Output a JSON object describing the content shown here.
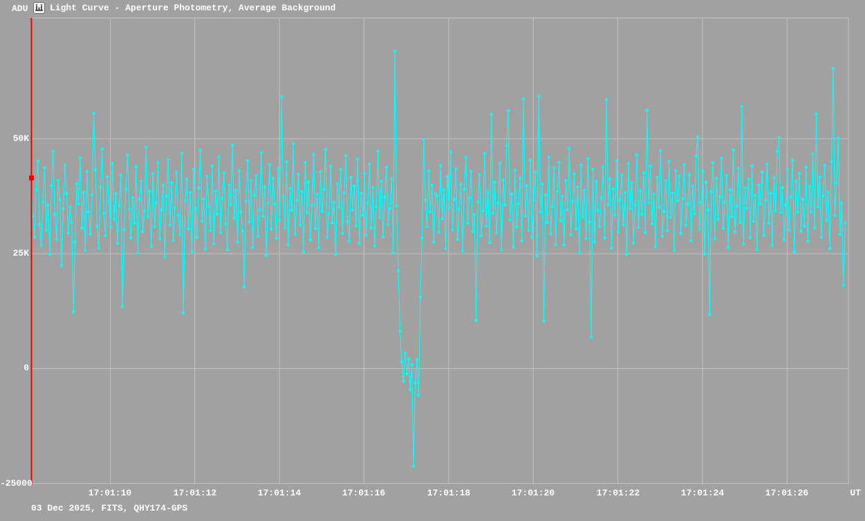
{
  "window": {
    "app": "Light Curve viewer",
    "title": "Light Curve - Aperture Photometry, Average Background"
  },
  "footer": {
    "text": "03 Dec 2025, FITS, QHY174-GPS"
  },
  "icons": {
    "title_icon": "light-curve-chart-icon"
  },
  "colors": {
    "background": "#a1a1a1",
    "grid": "#c2c2c2",
    "text": "#ffffff",
    "curve": "#00ffff",
    "cursor": "#e60000",
    "icon_bg": "#f2f2f2",
    "icon_glyph": "#3a3a3a"
  },
  "chart_data": {
    "type": "line",
    "title": "Light Curve - Aperture Photometry, Average Background",
    "xlabel": "UT",
    "ylabel": "ADU",
    "grid": true,
    "legend": "none",
    "x_start_time": "17:01:08.13",
    "sample_interval_s": 0.04,
    "xlim_seconds_after_1700": [
      68.13,
      87.45
    ],
    "ylim_adu": [
      -25200,
      76300
    ],
    "x_tick_seconds_after_1700": [
      70,
      72,
      74,
      76,
      78,
      80,
      82,
      84,
      86
    ],
    "x_tick_labels": [
      "17:01:10",
      "17:01:12",
      "17:01:14",
      "17:01:16",
      "17:01:18",
      "17:01:20",
      "17:01:22",
      "17:01:24",
      "17:01:26"
    ],
    "y_ticks": [
      {
        "value_adu": 50000,
        "label": "50K"
      },
      {
        "value_adu": 25000,
        "label": "25K"
      },
      {
        "value_adu": 0,
        "label": "0"
      },
      {
        "value_adu": -25000,
        "label": "-25000"
      }
    ],
    "cursor": {
      "sample_index": 0,
      "value_kadu": 41.5,
      "note": "red current-frame marker at first sample"
    },
    "values_kadu": [
      41.5,
      33.2,
      28.7,
      38.9,
      45.1,
      31.4,
      26.8,
      36.2,
      43.7,
      30.1,
      35.6,
      24.9,
      39.8,
      47.2,
      33.5,
      28.1,
      41.0,
      36.7,
      22.4,
      34.8,
      44.3,
      38.1,
      29.5,
      35.2,
      31.8,
      12.3,
      27.6,
      40.2,
      35.9,
      45.8,
      30.6,
      38.4,
      25.7,
      42.9,
      34.1,
      29.3,
      37.8,
      55.5,
      43.2,
      31.0,
      26.2,
      39.5,
      47.8,
      33.8,
      28.9,
      41.7,
      36.3,
      30.8,
      44.6,
      32.5,
      38.0,
      27.3,
      35.4,
      42.1,
      13.5,
      30.2,
      39.1,
      46.4,
      34.7,
      28.4,
      37.2,
      31.6,
      43.9,
      25.1,
      36.8,
      40.7,
      29.8,
      34.3,
      48.2,
      33.0,
      38.6,
      26.6,
      42.4,
      30.9,
      36.1,
      44.9,
      28.2,
      34.5,
      39.9,
      24.3,
      37.5,
      45.5,
      31.2,
      40.4,
      27.9,
      35.0,
      42.7,
      33.4,
      29.1,
      46.9,
      12.1,
      36.5,
      41.2,
      30.4,
      38.3,
      25.4,
      43.4,
      34.9,
      28.6,
      39.3,
      47.5,
      32.1,
      36.9,
      26.0,
      41.9,
      35.3,
      30.0,
      44.1,
      27.1,
      38.7,
      33.6,
      46.1,
      29.6,
      37.0,
      42.6,
      31.5,
      25.9,
      40.0,
      35.7,
      48.6,
      32.7,
      38.8,
      27.5,
      43.1,
      34.0,
      29.9,
      17.8,
      36.4,
      45.3,
      31.9,
      40.9,
      26.4,
      37.7,
      42.0,
      28.8,
      34.6,
      47.0,
      33.1,
      39.6,
      24.6,
      36.0,
      44.4,
      30.3,
      41.4,
      35.8,
      28.3,
      43.6,
      32.3,
      59.2,
      37.4,
      30.7,
      45.0,
      26.9,
      39.2,
      34.4,
      48.9,
      29.2,
      36.6,
      42.3,
      31.3,
      38.5,
      25.5,
      44.8,
      33.9,
      40.6,
      28.0,
      35.5,
      46.6,
      30.5,
      37.9,
      26.3,
      42.8,
      34.2,
      39.0,
      47.7,
      28.5,
      33.7,
      44.0,
      31.7,
      36.2,
      24.8,
      40.3,
      35.1,
      43.3,
      29.4,
      38.2,
      46.3,
      32.0,
      27.7,
      41.6,
      34.5,
      39.7,
      31.1,
      45.6,
      27.2,
      38.1,
      33.3,
      42.5,
      29.0,
      36.1,
      44.5,
      30.6,
      39.4,
      26.7,
      35.2,
      47.3,
      32.8,
      40.8,
      28.7,
      37.3,
      43.8,
      31.4,
      34.9,
      41.3,
      25.2,
      69.1,
      35.4,
      21.3,
      8.2,
      1.5,
      -2.8,
      3.4,
      -1.2,
      2.1,
      -4.6,
      0.8,
      -21.2,
      -3.1,
      1.9,
      -5.8,
      15.6,
      28.4,
      49.8,
      36.7,
      30.9,
      43.0,
      34.1,
      39.9,
      27.5,
      38.0,
      37.6,
      29.7,
      44.2,
      32.6,
      38.9,
      26.1,
      41.8,
      35.0,
      47.1,
      30.2,
      36.8,
      43.5,
      28.1,
      34.7,
      40.1,
      25.6,
      39.0,
      45.9,
      31.6,
      37.1,
      42.9,
      29.9,
      33.5,
      10.5,
      36.3,
      42.2,
      28.9,
      34.3,
      46.8,
      31.0,
      38.4,
      27.4,
      55.3,
      33.8,
      40.5,
      29.5,
      36.0,
      44.7,
      25.8,
      41.1,
      35.6,
      48.4,
      56.1,
      32.4,
      38.0,
      26.5,
      43.2,
      30.8,
      35.9,
      41.5,
      27.8,
      58.7,
      33.2,
      39.8,
      30.1,
      45.4,
      28.6,
      36.6,
      42.7,
      24.5,
      59.3,
      34.0,
      40.2,
      10.4,
      37.8,
      31.8,
      46.0,
      29.3,
      35.3,
      43.7,
      27.0,
      38.6,
      44.9,
      32.2,
      37.5,
      26.8,
      41.0,
      34.6,
      47.9,
      29.1,
      36.4,
      42.4,
      30.4,
      39.5,
      25.3,
      44.3,
      33.0,
      38.8,
      28.3,
      45.7,
      31.9,
      6.8,
      43.4,
      27.6,
      40.7,
      34.4,
      30.9,
      37.2,
      43.9,
      28.4,
      58.5,
      35.7,
      41.3,
      26.2,
      39.1,
      33.4,
      45.2,
      29.8,
      36.7,
      42.1,
      31.3,
      38.3,
      24.9,
      44.6,
      34.8,
      40.4,
      27.3,
      35.5,
      46.5,
      30.7,
      38.7,
      33.6,
      42.6,
      29.6,
      56.2,
      36.1,
      44.0,
      31.5,
      37.9,
      26.6,
      41.7,
      35.1,
      47.4,
      28.8,
      34.2,
      40.9,
      30.0,
      45.1,
      32.9,
      38.1,
      25.7,
      43.1,
      36.5,
      41.9,
      29.4,
      37.0,
      44.4,
      31.2,
      35.8,
      42.3,
      27.9,
      39.7,
      33.7,
      46.2,
      50.4,
      30.3,
      36.2,
      43.0,
      25.0,
      40.6,
      34.5,
      11.8,
      38.5,
      44.8,
      28.2,
      41.4,
      32.5,
      37.4,
      45.8,
      30.5,
      36.3,
      42.0,
      26.4,
      38.9,
      33.1,
      47.6,
      29.7,
      35.4,
      43.6,
      31.8,
      57.0,
      27.1,
      39.3,
      34.9,
      41.2,
      28.5,
      44.1,
      32.1,
      37.7,
      25.9,
      40.0,
      35.9,
      42.8,
      29.0,
      36.6,
      44.5,
      31.6,
      38.2,
      26.9,
      41.5,
      34.3,
      47.2,
      50.2,
      33.9,
      39.4,
      28.0,
      35.6,
      43.3,
      30.1,
      37.3,
      45.4,
      25.4,
      40.8,
      34.0,
      42.5,
      29.9,
      36.8,
      31.0,
      43.8,
      27.7,
      39.6,
      34.1,
      46.7,
      30.6,
      55.4,
      35.2,
      41.6,
      28.6,
      37.6,
      44.2,
      32.3,
      38.4,
      26.1,
      45.0,
      65.3,
      33.3,
      40.3,
      50.1,
      29.2,
      36.0,
      18.1,
      31.7
    ]
  }
}
